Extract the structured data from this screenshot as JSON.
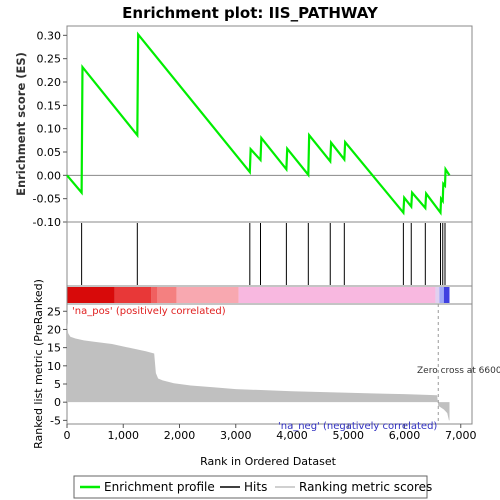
{
  "chart_data": {
    "type": "line",
    "title": "Enrichment plot: IIS_PATHWAY",
    "es_panel": {
      "ylabel": "Enrichment score (ES)",
      "ylim": [
        -0.1,
        0.32
      ],
      "yticks": [
        "-0.10",
        "-0.05",
        "0.00",
        "0.05",
        "0.10",
        "0.15",
        "0.20",
        "0.25",
        "0.30"
      ],
      "ytick_values": [
        -0.1,
        -0.05,
        0.0,
        0.05,
        0.1,
        0.15,
        0.2,
        0.25,
        0.3
      ],
      "series": [
        {
          "name": "Enrichment profile",
          "color": "#00ee00",
          "x": [
            0,
            260,
            275,
            1250,
            1265,
            3250,
            3265,
            3440,
            3455,
            3900,
            3915,
            4290,
            4305,
            4680,
            4695,
            4930,
            4945,
            5980,
            5995,
            6120,
            6135,
            6370,
            6385,
            6640,
            6650,
            6680,
            6690,
            6720,
            6730,
            6800
          ],
          "y": [
            0.0,
            -0.037,
            0.232,
            0.086,
            0.302,
            0.007,
            0.056,
            0.033,
            0.08,
            0.013,
            0.057,
            0.001,
            0.086,
            0.03,
            0.07,
            0.034,
            0.071,
            -0.08,
            -0.048,
            -0.067,
            -0.037,
            -0.07,
            -0.039,
            -0.08,
            -0.05,
            -0.055,
            -0.018,
            -0.022,
            0.013,
            0.0
          ]
        }
      ]
    },
    "hits_panel": {
      "name": "Hits",
      "hit_positions": [
        260,
        1250,
        3250,
        3440,
        3900,
        4290,
        4680,
        4930,
        5980,
        6120,
        6370,
        6640,
        6680,
        6720
      ]
    },
    "heatmap_bar": {
      "segments": [
        {
          "x0": 0,
          "x1": 850,
          "color": "#d80a0a"
        },
        {
          "x0": 850,
          "x1": 1500,
          "color": "#e83838"
        },
        {
          "x0": 1500,
          "x1": 1600,
          "color": "#f06060"
        },
        {
          "x0": 1600,
          "x1": 1950,
          "color": "#f48080"
        },
        {
          "x0": 1950,
          "x1": 3050,
          "color": "#f8a8b0"
        },
        {
          "x0": 3050,
          "x1": 6550,
          "color": "#f8b8e0"
        },
        {
          "x0": 6550,
          "x1": 6620,
          "color": "#e0d0f0"
        },
        {
          "x0": 6620,
          "x1": 6700,
          "color": "#a0a8f8"
        },
        {
          "x0": 6700,
          "x1": 6800,
          "color": "#4040e0"
        }
      ]
    },
    "metric_panel": {
      "ylabel": "Ranked list metric (PreRanked)",
      "xlabel": "Rank in Ordered Dataset",
      "ylim": [
        -6,
        27
      ],
      "yticks": [
        "-5",
        "0",
        "5",
        "10",
        "15",
        "20",
        "25"
      ],
      "ytick_values": [
        -5,
        0,
        5,
        10,
        15,
        20,
        25
      ],
      "xlim": [
        0,
        7200
      ],
      "xticks": [
        "0",
        "1,000",
        "2,000",
        "3,000",
        "4,000",
        "5,000",
        "6,000",
        "7,000"
      ],
      "xtick_values": [
        0,
        1000,
        2000,
        3000,
        4000,
        5000,
        6000,
        7000
      ],
      "series": [
        {
          "name": "Ranking metric scores",
          "color": "#c0c0c0",
          "x": [
            0,
            20,
            60,
            150,
            300,
            500,
            800,
            1100,
            1400,
            1550,
            1580,
            1620,
            1700,
            1900,
            2200,
            2600,
            3000,
            3500,
            4000,
            4500,
            5000,
            5500,
            6000,
            6400,
            6580,
            6600,
            6620,
            6700,
            6760,
            6790,
            6800
          ],
          "y": [
            22,
            19,
            18,
            17.5,
            17,
            16.6,
            16,
            15,
            14,
            13.4,
            8,
            6.5,
            6,
            5.2,
            4.6,
            4.1,
            3.6,
            3.3,
            3.0,
            2.8,
            2.6,
            2.4,
            2.2,
            2.0,
            1.9,
            -1.0,
            -1.2,
            -2,
            -3,
            -5,
            -5
          ]
        }
      ],
      "zero_cross": 6600,
      "annotations": {
        "pos": "'na_pos' (positively correlated)",
        "neg": "'na_neg' (negatively correlated)",
        "zero": "Zero cross at 6600"
      }
    },
    "legend": {
      "placement": "bottom",
      "items": [
        {
          "label": "Enrichment profile",
          "color": "#00ee00"
        },
        {
          "label": "Hits",
          "color": "#000000"
        },
        {
          "label": "Ranking metric scores",
          "color": "#c0c0c0"
        }
      ]
    }
  }
}
